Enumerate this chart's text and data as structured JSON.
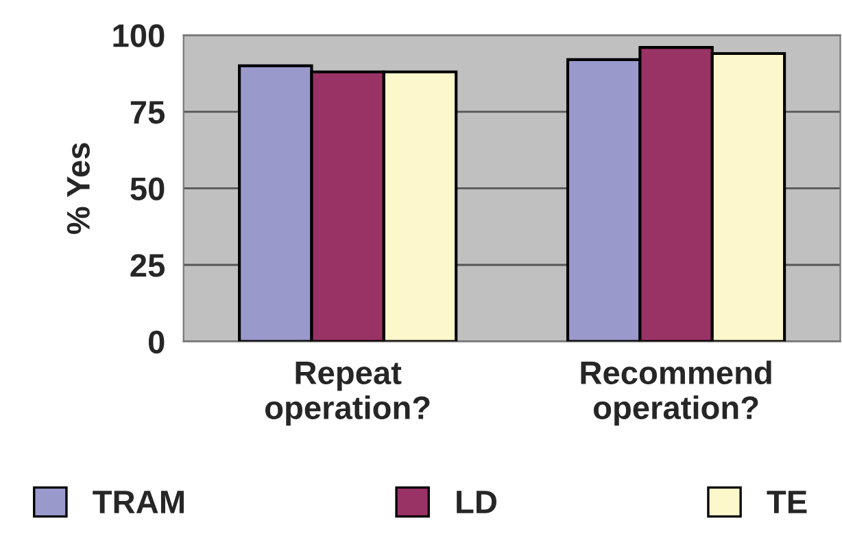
{
  "chart_data": {
    "type": "bar",
    "ylabel": "% Yes",
    "categories": [
      "Repeat\noperation?",
      "Recommend\noperation?"
    ],
    "series": [
      {
        "name": "TRAM",
        "color": "#9999cc",
        "values": [
          90,
          92
        ]
      },
      {
        "name": "LD",
        "color": "#993366",
        "values": [
          88,
          96
        ]
      },
      {
        "name": "TE",
        "color": "#fcf8cc",
        "values": [
          88,
          94
        ]
      }
    ],
    "ylim": [
      0,
      100
    ],
    "yticks": [
      0,
      25,
      50,
      75,
      100
    ],
    "grid": "y",
    "legend": "bottom"
  }
}
